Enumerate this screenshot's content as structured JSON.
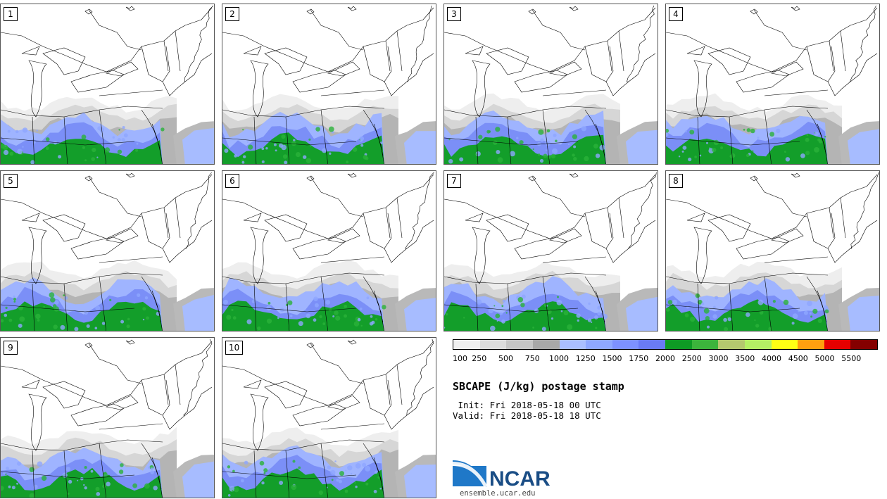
{
  "members": [
    "1",
    "2",
    "3",
    "4",
    "5",
    "6",
    "7",
    "8",
    "9",
    "10"
  ],
  "colorbar": {
    "colors": [
      "#f0f0f0",
      "#dcdcdc",
      "#c6c6c6",
      "#a8a8a8",
      "#aabfff",
      "#8fa8ff",
      "#7d91ff",
      "#6a7bf5",
      "#0e9b24",
      "#3cb43c",
      "#b4c86e",
      "#b4f064",
      "#ffff14",
      "#ff9f0f",
      "#e60000",
      "#840000"
    ],
    "tick_labels": [
      "100",
      "250",
      "500",
      "750",
      "1000",
      "1250",
      "1500",
      "1750",
      "2000",
      "2500",
      "3000",
      "3500",
      "4000",
      "4500",
      "5000",
      "5500"
    ]
  },
  "product_title": "SBCAPE (J/kg) postage stamp",
  "init_line": " Init: Fri 2018-05-18 00 UTC",
  "valid_line": "Valid: Fri 2018-05-18 18 UTC",
  "logo_text": "NCAR",
  "logo_url": "ensemble.ucar.edu"
}
